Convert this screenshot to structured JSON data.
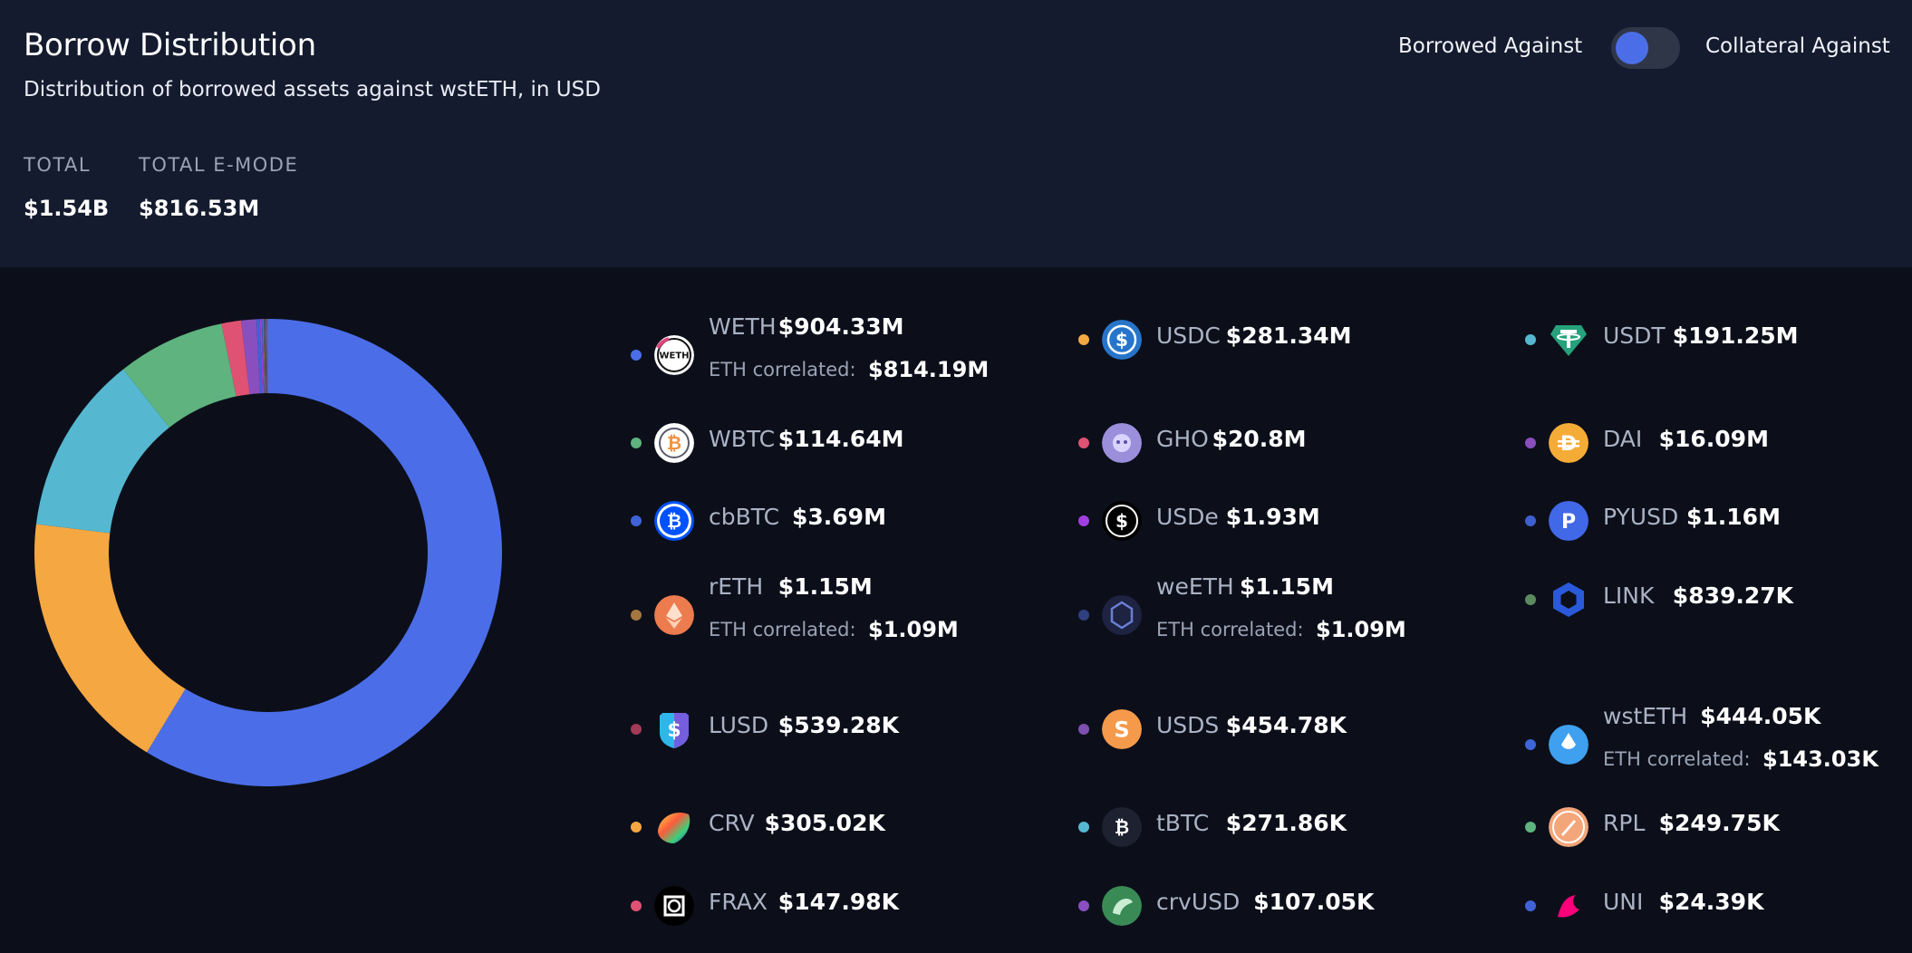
{
  "header": {
    "title": "Borrow Distribution",
    "subtitle": "Distribution of borrowed assets against wstETH, in USD",
    "total_label": "TOTAL",
    "total_value": "$1.54B",
    "emode_label": "TOTAL E-MODE",
    "emode_value": "$816.53M"
  },
  "toggle": {
    "left_label": "Borrowed Against",
    "right_label": "Collateral Against",
    "state": "borrowed-against"
  },
  "colors": {
    "accent": "#4b6ee8",
    "header_bg": "#141b2e",
    "page_bg": "#0c0f1a"
  },
  "corr_label": "ETH correlated:",
  "assets": [
    {
      "name": "WETH",
      "value": "$904.33M",
      "corr": "$814.19M",
      "dot": "#4b6ee8",
      "icon": "weth-icon",
      "amount": 904.33
    },
    {
      "name": "USDC",
      "value": "$281.34M",
      "dot": "#f5a742",
      "icon": "usdc-icon",
      "amount": 281.34
    },
    {
      "name": "USDT",
      "value": "$191.25M",
      "dot": "#55b8d0",
      "icon": "usdt-icon",
      "amount": 191.25
    },
    {
      "name": "WBTC",
      "value": "$114.64M",
      "dot": "#5eb37f",
      "icon": "wbtc-icon",
      "amount": 114.64
    },
    {
      "name": "GHO",
      "value": "$20.8M",
      "dot": "#e05273",
      "icon": "gho-icon",
      "amount": 20.8
    },
    {
      "name": "DAI",
      "value": "$16.09M",
      "dot": "#8a4fbf",
      "icon": "dai-icon",
      "amount": 16.09
    },
    {
      "name": "cbBTC",
      "value": "$3.69M",
      "dot": "#3f63d6",
      "icon": "cbbtc-icon",
      "amount": 3.69
    },
    {
      "name": "USDe",
      "value": "$1.93M",
      "dot": "#a13fe0",
      "icon": "usde-icon",
      "amount": 1.93
    },
    {
      "name": "PYUSD",
      "value": "$1.16M",
      "dot": "#3e5fcf",
      "icon": "pyusd-icon",
      "amount": 1.16
    },
    {
      "name": "rETH",
      "value": "$1.15M",
      "corr": "$1.09M",
      "dot": "#a5773f",
      "icon": "reth-icon",
      "amount": 1.15
    },
    {
      "name": "weETH",
      "value": "$1.15M",
      "corr": "$1.09M",
      "dot": "#2f3f7f",
      "icon": "weeth-icon",
      "amount": 1.15
    },
    {
      "name": "LINK",
      "value": "$839.27K",
      "dot": "#5b8a5e",
      "icon": "link-icon",
      "amount": 0.83927
    },
    {
      "name": "LUSD",
      "value": "$539.28K",
      "dot": "#a33a58",
      "icon": "lusd-icon",
      "amount": 0.53928
    },
    {
      "name": "USDS",
      "value": "$454.78K",
      "dot": "#7e4fb0",
      "icon": "usds-icon",
      "amount": 0.45478
    },
    {
      "name": "wstETH",
      "value": "$444.05K",
      "corr": "$143.03K",
      "dot": "#3d66d9",
      "icon": "wsteth-icon",
      "amount": 0.44405
    },
    {
      "name": "CRV",
      "value": "$305.02K",
      "dot": "#f5a742",
      "icon": "crv-icon",
      "amount": 0.30502
    },
    {
      "name": "tBTC",
      "value": "$271.86K",
      "dot": "#55b8d0",
      "icon": "tbtc-icon",
      "amount": 0.27186
    },
    {
      "name": "RPL",
      "value": "$249.75K",
      "dot": "#5eb37f",
      "icon": "rpl-icon",
      "amount": 0.24975
    },
    {
      "name": "FRAX",
      "value": "$147.98K",
      "dot": "#e05273",
      "icon": "frax-icon",
      "amount": 0.14798
    },
    {
      "name": "crvUSD",
      "value": "$107.05K",
      "dot": "#8a4fbf",
      "icon": "crvusd-icon",
      "amount": 0.10705
    },
    {
      "name": "UNI",
      "value": "$24.39K",
      "dot": "#3f63d6",
      "icon": "uni-icon",
      "amount": 0.02439
    }
  ],
  "chart_data": {
    "type": "pie",
    "categories": [
      "WETH",
      "USDC",
      "USDT",
      "WBTC",
      "GHO",
      "DAI",
      "cbBTC",
      "USDe",
      "PYUSD",
      "rETH",
      "weETH",
      "LINK",
      "LUSD",
      "USDS",
      "wstETH",
      "CRV",
      "tBTC",
      "RPL",
      "FRAX",
      "crvUSD",
      "UNI"
    ],
    "values": [
      904.33,
      281.34,
      191.25,
      114.64,
      20.8,
      16.09,
      3.69,
      1.93,
      1.16,
      1.15,
      1.15,
      0.83927,
      0.53928,
      0.45478,
      0.44405,
      0.30502,
      0.27186,
      0.24975,
      0.14798,
      0.10705,
      0.02439
    ],
    "unit": "USD millions",
    "legend": "right"
  }
}
